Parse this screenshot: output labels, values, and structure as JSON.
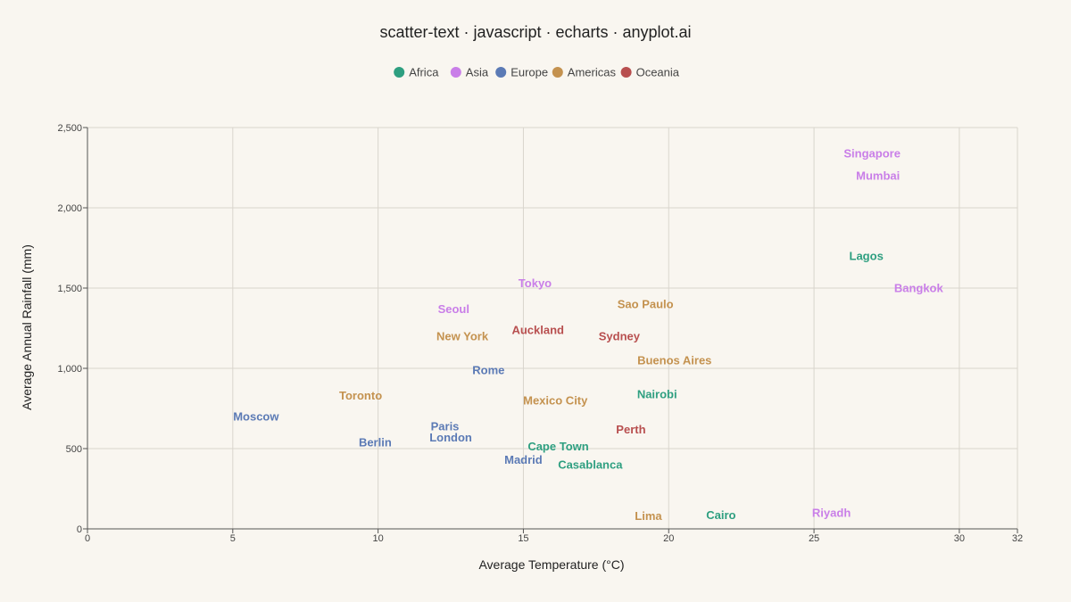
{
  "chart_data": {
    "type": "scatter",
    "title": "scatter-text · javascript · echarts · anyplot.ai",
    "xlabel": "Average Temperature (°C)",
    "ylabel": "Average Annual Rainfall (mm)",
    "xlim": [
      0,
      32
    ],
    "ylim": [
      0,
      2500
    ],
    "xticks": [
      0,
      5,
      10,
      15,
      20,
      25,
      30,
      32
    ],
    "yticks": [
      0,
      500,
      1000,
      1500,
      2000,
      2500
    ],
    "ytick_labels": [
      "0",
      "500",
      "1,000",
      "1,500",
      "2,000",
      "2,500"
    ],
    "grid": true,
    "legend_position": "top-center",
    "legend": [
      {
        "name": "Africa",
        "color": "#2e9f80"
      },
      {
        "name": "Asia",
        "color": "#c97ee8"
      },
      {
        "name": "Europe",
        "color": "#5b7ab5"
      },
      {
        "name": "Americas",
        "color": "#c4924f"
      },
      {
        "name": "Oceania",
        "color": "#b84f4f"
      }
    ],
    "points": [
      {
        "label": "Singapore",
        "region": "Asia",
        "x": 27,
        "y": 2340
      },
      {
        "label": "Mumbai",
        "region": "Asia",
        "x": 27.2,
        "y": 2200
      },
      {
        "label": "Lagos",
        "region": "Africa",
        "x": 26.8,
        "y": 1700
      },
      {
        "label": "Bangkok",
        "region": "Asia",
        "x": 28.6,
        "y": 1500
      },
      {
        "label": "Tokyo",
        "region": "Asia",
        "x": 15.4,
        "y": 1530
      },
      {
        "label": "Seoul",
        "region": "Asia",
        "x": 12.6,
        "y": 1370
      },
      {
        "label": "Sao Paulo",
        "region": "Americas",
        "x": 19.2,
        "y": 1400
      },
      {
        "label": "Auckland",
        "region": "Oceania",
        "x": 15.5,
        "y": 1240
      },
      {
        "label": "New York",
        "region": "Americas",
        "x": 12.9,
        "y": 1200
      },
      {
        "label": "Sydney",
        "region": "Oceania",
        "x": 18.3,
        "y": 1200
      },
      {
        "label": "Buenos Aires",
        "region": "Americas",
        "x": 20.2,
        "y": 1050
      },
      {
        "label": "Rome",
        "region": "Europe",
        "x": 13.8,
        "y": 990
      },
      {
        "label": "Toronto",
        "region": "Americas",
        "x": 9.4,
        "y": 830
      },
      {
        "label": "Nairobi",
        "region": "Africa",
        "x": 19.6,
        "y": 840
      },
      {
        "label": "Mexico City",
        "region": "Americas",
        "x": 16.1,
        "y": 800
      },
      {
        "label": "Moscow",
        "region": "Europe",
        "x": 5.8,
        "y": 700
      },
      {
        "label": "Paris",
        "region": "Europe",
        "x": 12.3,
        "y": 640
      },
      {
        "label": "Perth",
        "region": "Oceania",
        "x": 18.7,
        "y": 620
      },
      {
        "label": "London",
        "region": "Europe",
        "x": 12.5,
        "y": 570
      },
      {
        "label": "Berlin",
        "region": "Europe",
        "x": 9.9,
        "y": 540
      },
      {
        "label": "Cape Town",
        "region": "Africa",
        "x": 16.2,
        "y": 515
      },
      {
        "label": "Madrid",
        "region": "Europe",
        "x": 15.0,
        "y": 430
      },
      {
        "label": "Casablanca",
        "region": "Africa",
        "x": 17.3,
        "y": 400
      },
      {
        "label": "Lima",
        "region": "Americas",
        "x": 19.3,
        "y": 80
      },
      {
        "label": "Cairo",
        "region": "Africa",
        "x": 21.8,
        "y": 85
      },
      {
        "label": "Riyadh",
        "region": "Asia",
        "x": 25.6,
        "y": 100
      }
    ]
  }
}
